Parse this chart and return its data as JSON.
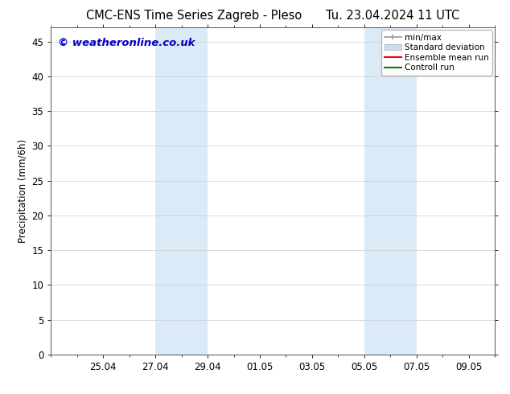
{
  "title_left": "CMC-ENS Time Series Zagreb - Pleso",
  "title_right": "Tu. 23.04.2024 11 UTC",
  "ylabel": "Precipitation (mm/6h)",
  "watermark": "© weatheronline.co.uk",
  "watermark_color": "#0000cc",
  "background_color": "#ffffff",
  "plot_bg_color": "#ffffff",
  "ylim": [
    0,
    47
  ],
  "yticks": [
    0,
    5,
    10,
    15,
    20,
    25,
    30,
    35,
    40,
    45
  ],
  "xlim": [
    0,
    17
  ],
  "xtick_labels": [
    "25.04",
    "27.04",
    "29.04",
    "01.05",
    "03.05",
    "05.05",
    "07.05",
    "09.05"
  ],
  "xtick_positions": [
    2,
    4,
    6,
    8,
    10,
    12,
    14,
    16
  ],
  "shaded_bands": [
    {
      "x_start": 4,
      "x_end": 6
    },
    {
      "x_start": 12,
      "x_end": 14
    }
  ],
  "shaded_color": "#daeaf7",
  "legend_entries": [
    {
      "label": "min/max",
      "color": "#999999",
      "lw": 1.2,
      "style": "line_with_caps"
    },
    {
      "label": "Standard deviation",
      "color": "#c8dff0",
      "lw": 8,
      "style": "bar"
    },
    {
      "label": "Ensemble mean run",
      "color": "#ff0000",
      "lw": 1.5,
      "style": "line"
    },
    {
      "label": "Controll run",
      "color": "#008000",
      "lw": 1.5,
      "style": "line"
    }
  ],
  "legend_fontsize": 7.5,
  "title_fontsize": 10.5,
  "ylabel_fontsize": 8.5,
  "tick_fontsize": 8.5,
  "watermark_fontsize": 9.5
}
